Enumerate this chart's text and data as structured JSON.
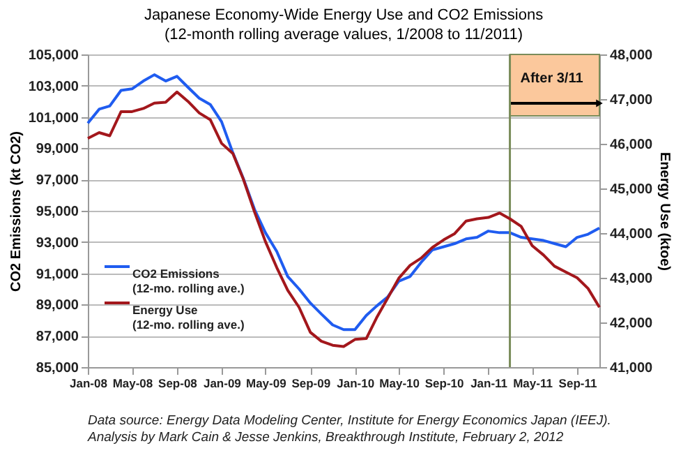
{
  "chart_data": {
    "type": "line",
    "title": "Japanese Economy-Wide Energy Use and CO2 Emissions",
    "subtitle": "(12-month rolling average values, 1/2008 to 11/2011)",
    "ylabel": "CO2 Emissions (kt CO2)",
    "y2label": "Energy Use (ktoe)",
    "x": [
      "2008-01",
      "2008-02",
      "2008-03",
      "2008-04",
      "2008-05",
      "2008-06",
      "2008-07",
      "2008-08",
      "2008-09",
      "2008-10",
      "2008-11",
      "2008-12",
      "2009-01",
      "2009-02",
      "2009-03",
      "2009-04",
      "2009-05",
      "2009-06",
      "2009-07",
      "2009-08",
      "2009-09",
      "2009-10",
      "2009-11",
      "2009-12",
      "2010-01",
      "2010-02",
      "2010-03",
      "2010-04",
      "2010-05",
      "2010-06",
      "2010-07",
      "2010-08",
      "2010-09",
      "2010-10",
      "2010-11",
      "2010-12",
      "2011-01",
      "2011-02",
      "2011-03",
      "2011-04",
      "2011-05",
      "2011-06",
      "2011-07",
      "2011-08",
      "2011-09",
      "2011-10",
      "2011-11"
    ],
    "series": [
      {
        "name": "CO2 Emissions\n(12-mo. rolling ave.)",
        "color": "#1f5cf0",
        "values": [
          100600,
          101500,
          101700,
          102700,
          102800,
          103300,
          103700,
          103300,
          103600,
          102900,
          102200,
          101800,
          100700,
          98700,
          97100,
          95100,
          93600,
          92400,
          90800,
          90000,
          89100,
          88400,
          87700,
          87400,
          87400,
          88300,
          88900,
          89500,
          90500,
          90800,
          91700,
          92500,
          92700,
          92900,
          93200,
          93300,
          93700,
          93600,
          93600,
          93300,
          93200,
          93100,
          92900,
          92700,
          93300,
          93500,
          93900
        ]
      },
      {
        "name": "Energy Use\n(12-mo. rolling ave.)",
        "color": "#a3171c",
        "axis": "y2",
        "values": [
          46120,
          46250,
          46180,
          46720,
          46720,
          46790,
          46910,
          46930,
          47160,
          46950,
          46690,
          46540,
          46010,
          45780,
          45220,
          44480,
          43810,
          43230,
          42720,
          42340,
          41780,
          41580,
          41490,
          41460,
          41620,
          41640,
          42100,
          42550,
          42990,
          43280,
          43440,
          43680,
          43850,
          43990,
          44270,
          44320,
          44350,
          44450,
          44320,
          44150,
          43720,
          43510,
          43260,
          43130,
          43000,
          42760,
          42340
        ]
      }
    ],
    "xlim": [
      "2008-01",
      "2011-11"
    ],
    "xticks": [
      {
        "value": "2008-01",
        "label": "Jan-08"
      },
      {
        "value": "2008-05",
        "label": "May-08"
      },
      {
        "value": "2008-09",
        "label": "Sep-08"
      },
      {
        "value": "2009-01",
        "label": "Jan-09"
      },
      {
        "value": "2009-05",
        "label": "May-09"
      },
      {
        "value": "2009-09",
        "label": "Sep-09"
      },
      {
        "value": "2010-01",
        "label": "Jan-10"
      },
      {
        "value": "2010-05",
        "label": "May-10"
      },
      {
        "value": "2010-09",
        "label": "Sep-10"
      },
      {
        "value": "2011-01",
        "label": "Jan-11"
      },
      {
        "value": "2011-05",
        "label": "May-11"
      },
      {
        "value": "2011-09",
        "label": "Sep-11"
      }
    ],
    "ylim": [
      85000,
      105000
    ],
    "yticks": [
      {
        "value": 85000,
        "label": "85,000"
      },
      {
        "value": 87000,
        "label": "87,000"
      },
      {
        "value": 89000,
        "label": "89,000"
      },
      {
        "value": 91000,
        "label": "91,000"
      },
      {
        "value": 93000,
        "label": "93,000"
      },
      {
        "value": 95000,
        "label": "95,000"
      },
      {
        "value": 97000,
        "label": "97,000"
      },
      {
        "value": 99000,
        "label": "99,000"
      },
      {
        "value": 101000,
        "label": "101,000"
      },
      {
        "value": 103000,
        "label": "103,000"
      },
      {
        "value": 105000,
        "label": "105,000"
      }
    ],
    "y2lim": [
      41000,
      48000
    ],
    "y2ticks": [
      {
        "value": 41000,
        "label": "41,000"
      },
      {
        "value": 42000,
        "label": "42,000"
      },
      {
        "value": 43000,
        "label": "43,000"
      },
      {
        "value": 44000,
        "label": "44,000"
      },
      {
        "value": 45000,
        "label": "45,000"
      },
      {
        "value": 46000,
        "label": "46,000"
      },
      {
        "value": 47000,
        "label": "47,000"
      },
      {
        "value": 48000,
        "label": "48,000"
      }
    ],
    "ref_lines": [
      {
        "axis": "x",
        "value": "2011-03",
        "color": "#7a8c5a"
      }
    ],
    "bands": [
      {
        "axis": "x",
        "from": "2011-03",
        "to": "2011-11",
        "label": "After 3/11",
        "color": "#fbc89c"
      }
    ],
    "grid": "y",
    "legend": "bottom left",
    "marker": "none",
    "line_style": "solid",
    "annotations": [
      "Data source: Energy Data Modeling Center, Institute for Energy Economics Japan (IEEJ).",
      "Analysis by Mark Cain & Jesse Jenkins, Breakthrough Institute, February 2, 2012"
    ]
  }
}
